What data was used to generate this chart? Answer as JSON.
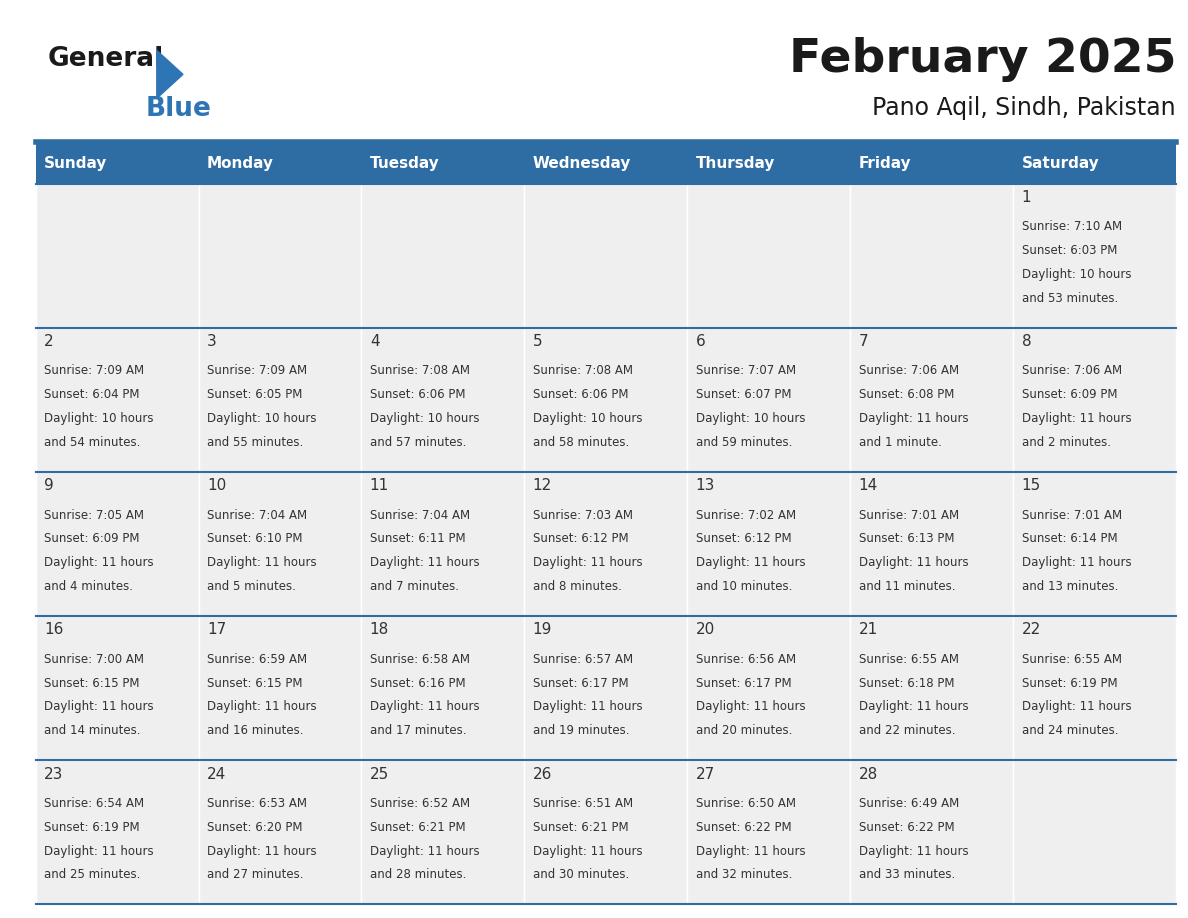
{
  "title": "February 2025",
  "subtitle": "Pano Aqil, Sindh, Pakistan",
  "days_of_week": [
    "Sunday",
    "Monday",
    "Tuesday",
    "Wednesday",
    "Thursday",
    "Friday",
    "Saturday"
  ],
  "header_bg": "#2E6DA4",
  "header_text": "#FFFFFF",
  "cell_bg_light": "#EFEFEF",
  "line_color": "#2E6DA4",
  "title_color": "#1a1a1a",
  "text_color": "#333333",
  "logo_general_color": "#1a1a1a",
  "logo_blue_color": "#2E75B6",
  "calendar_data": [
    [
      null,
      null,
      null,
      null,
      null,
      null,
      {
        "day": 1,
        "sunrise": "7:10 AM",
        "sunset": "6:03 PM",
        "daylight": "10 hours",
        "daylight2": "and 53 minutes."
      }
    ],
    [
      {
        "day": 2,
        "sunrise": "7:09 AM",
        "sunset": "6:04 PM",
        "daylight": "10 hours",
        "daylight2": "and 54 minutes."
      },
      {
        "day": 3,
        "sunrise": "7:09 AM",
        "sunset": "6:05 PM",
        "daylight": "10 hours",
        "daylight2": "and 55 minutes."
      },
      {
        "day": 4,
        "sunrise": "7:08 AM",
        "sunset": "6:06 PM",
        "daylight": "10 hours",
        "daylight2": "and 57 minutes."
      },
      {
        "day": 5,
        "sunrise": "7:08 AM",
        "sunset": "6:06 PM",
        "daylight": "10 hours",
        "daylight2": "and 58 minutes."
      },
      {
        "day": 6,
        "sunrise": "7:07 AM",
        "sunset": "6:07 PM",
        "daylight": "10 hours",
        "daylight2": "and 59 minutes."
      },
      {
        "day": 7,
        "sunrise": "7:06 AM",
        "sunset": "6:08 PM",
        "daylight": "11 hours",
        "daylight2": "and 1 minute."
      },
      {
        "day": 8,
        "sunrise": "7:06 AM",
        "sunset": "6:09 PM",
        "daylight": "11 hours",
        "daylight2": "and 2 minutes."
      }
    ],
    [
      {
        "day": 9,
        "sunrise": "7:05 AM",
        "sunset": "6:09 PM",
        "daylight": "11 hours",
        "daylight2": "and 4 minutes."
      },
      {
        "day": 10,
        "sunrise": "7:04 AM",
        "sunset": "6:10 PM",
        "daylight": "11 hours",
        "daylight2": "and 5 minutes."
      },
      {
        "day": 11,
        "sunrise": "7:04 AM",
        "sunset": "6:11 PM",
        "daylight": "11 hours",
        "daylight2": "and 7 minutes."
      },
      {
        "day": 12,
        "sunrise": "7:03 AM",
        "sunset": "6:12 PM",
        "daylight": "11 hours",
        "daylight2": "and 8 minutes."
      },
      {
        "day": 13,
        "sunrise": "7:02 AM",
        "sunset": "6:12 PM",
        "daylight": "11 hours",
        "daylight2": "and 10 minutes."
      },
      {
        "day": 14,
        "sunrise": "7:01 AM",
        "sunset": "6:13 PM",
        "daylight": "11 hours",
        "daylight2": "and 11 minutes."
      },
      {
        "day": 15,
        "sunrise": "7:01 AM",
        "sunset": "6:14 PM",
        "daylight": "11 hours",
        "daylight2": "and 13 minutes."
      }
    ],
    [
      {
        "day": 16,
        "sunrise": "7:00 AM",
        "sunset": "6:15 PM",
        "daylight": "11 hours",
        "daylight2": "and 14 minutes."
      },
      {
        "day": 17,
        "sunrise": "6:59 AM",
        "sunset": "6:15 PM",
        "daylight": "11 hours",
        "daylight2": "and 16 minutes."
      },
      {
        "day": 18,
        "sunrise": "6:58 AM",
        "sunset": "6:16 PM",
        "daylight": "11 hours",
        "daylight2": "and 17 minutes."
      },
      {
        "day": 19,
        "sunrise": "6:57 AM",
        "sunset": "6:17 PM",
        "daylight": "11 hours",
        "daylight2": "and 19 minutes."
      },
      {
        "day": 20,
        "sunrise": "6:56 AM",
        "sunset": "6:17 PM",
        "daylight": "11 hours",
        "daylight2": "and 20 minutes."
      },
      {
        "day": 21,
        "sunrise": "6:55 AM",
        "sunset": "6:18 PM",
        "daylight": "11 hours",
        "daylight2": "and 22 minutes."
      },
      {
        "day": 22,
        "sunrise": "6:55 AM",
        "sunset": "6:19 PM",
        "daylight": "11 hours",
        "daylight2": "and 24 minutes."
      }
    ],
    [
      {
        "day": 23,
        "sunrise": "6:54 AM",
        "sunset": "6:19 PM",
        "daylight": "11 hours",
        "daylight2": "and 25 minutes."
      },
      {
        "day": 24,
        "sunrise": "6:53 AM",
        "sunset": "6:20 PM",
        "daylight": "11 hours",
        "daylight2": "and 27 minutes."
      },
      {
        "day": 25,
        "sunrise": "6:52 AM",
        "sunset": "6:21 PM",
        "daylight": "11 hours",
        "daylight2": "and 28 minutes."
      },
      {
        "day": 26,
        "sunrise": "6:51 AM",
        "sunset": "6:21 PM",
        "daylight": "11 hours",
        "daylight2": "and 30 minutes."
      },
      {
        "day": 27,
        "sunrise": "6:50 AM",
        "sunset": "6:22 PM",
        "daylight": "11 hours",
        "daylight2": "and 32 minutes."
      },
      {
        "day": 28,
        "sunrise": "6:49 AM",
        "sunset": "6:22 PM",
        "daylight": "11 hours",
        "daylight2": "and 33 minutes."
      },
      null
    ]
  ]
}
